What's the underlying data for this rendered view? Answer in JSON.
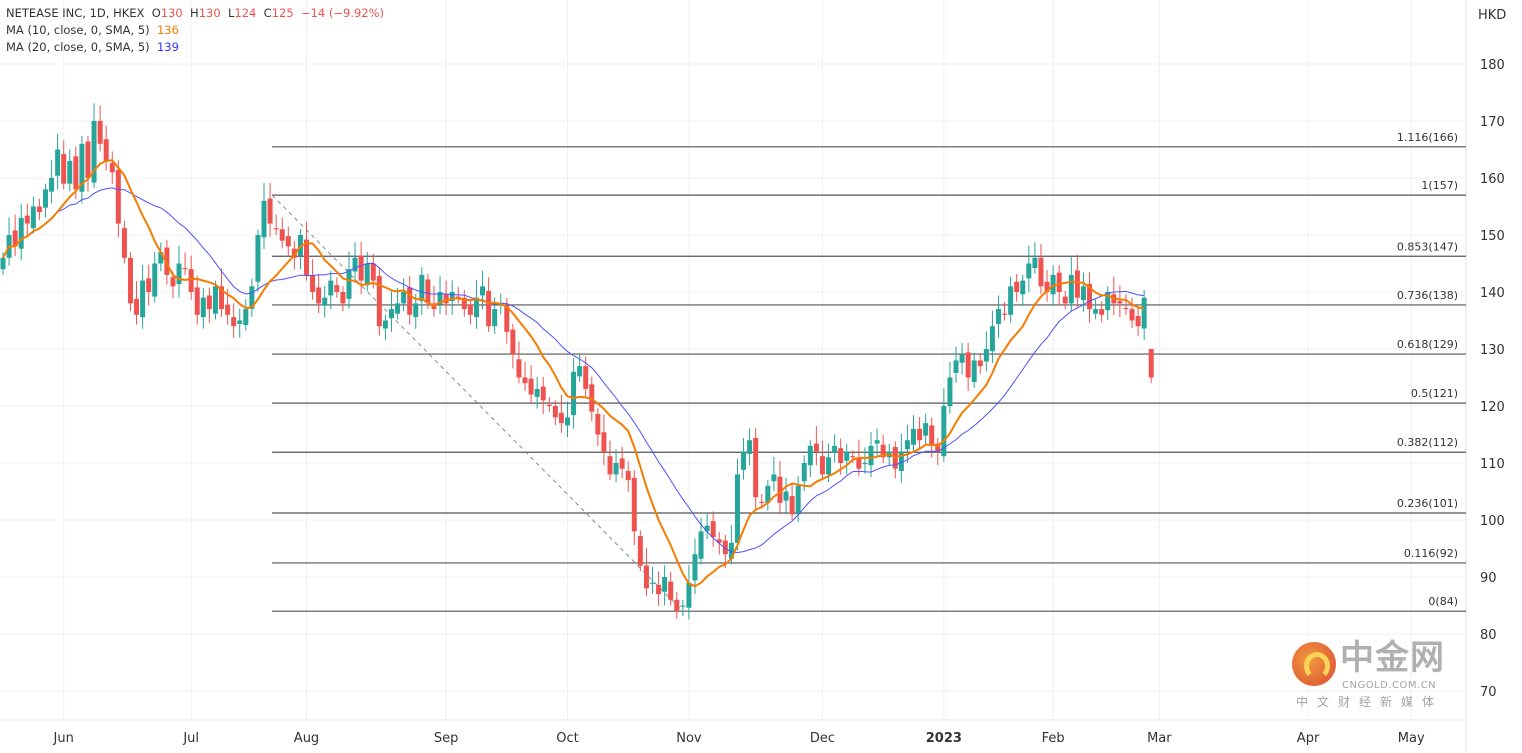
{
  "legend": {
    "symbol": "NETEASE INC, 1D, HKEX",
    "o_label": "O",
    "o": "130",
    "h_label": "H",
    "h": "130",
    "l_label": "L",
    "l": "124",
    "c_label": "C",
    "c": "125",
    "change": "−14 (−9.92%)",
    "ma10_label": "MA (10, close, 0, SMA, 5)",
    "ma10_value": "136",
    "ma20_label": "MA (20, close, 0, SMA, 5)",
    "ma20_value": "139"
  },
  "watermark": {
    "name": "中金网",
    "url": "CNGOLD.COM.CN",
    "tagline": "中文财经新媒体"
  },
  "colors": {
    "up": "#26a69a",
    "down": "#ef5350",
    "ma10": "#f57c00",
    "ma20": "#5050ff",
    "fib": "#555555",
    "grid": "#eef0f6"
  },
  "chart_data": {
    "type": "candlestick",
    "title": "NETEASE INC, 1D, HKEX",
    "currency": "HKD",
    "ylim": [
      70,
      185
    ],
    "y_ticks": [
      180,
      170,
      160,
      150,
      140,
      130,
      120,
      110,
      100,
      90,
      80,
      70
    ],
    "x_ticks": [
      {
        "label": "Jun",
        "index": 10
      },
      {
        "label": "Jul",
        "index": 31
      },
      {
        "label": "Aug",
        "index": 50
      },
      {
        "label": "Sep",
        "index": 73
      },
      {
        "label": "Oct",
        "index": 93
      },
      {
        "label": "Nov",
        "index": 113
      },
      {
        "label": "Dec",
        "index": 135
      },
      {
        "label": "2023",
        "index": 155,
        "bold": true
      },
      {
        "label": "Feb",
        "index": 173
      },
      {
        "label": "Mar",
        "index": 190.5
      },
      {
        "label": "Apr",
        "index": 215
      },
      {
        "label": "May",
        "index": 232
      }
    ],
    "closes": [
      146,
      150,
      148,
      153,
      152,
      155,
      154,
      158,
      160,
      165,
      159,
      163,
      158,
      166,
      160,
      170,
      166,
      163,
      161,
      152,
      146,
      138,
      136,
      142,
      140,
      145,
      147,
      143,
      141,
      145,
      144,
      140,
      136,
      139,
      137,
      141,
      137,
      136,
      134,
      135,
      137,
      141,
      150,
      156,
      152,
      151,
      149,
      148,
      146,
      150,
      143,
      140,
      138,
      139,
      142,
      140,
      138,
      144,
      146,
      142,
      145,
      142,
      134,
      135,
      137,
      138,
      140,
      136,
      138,
      143,
      138,
      137,
      140,
      138,
      140,
      139,
      137,
      136,
      139,
      141,
      134,
      137,
      138,
      133,
      129,
      125,
      124,
      122,
      123,
      121,
      120,
      118,
      117,
      118,
      126,
      127,
      123,
      119,
      115,
      112,
      108,
      110,
      109,
      107,
      98,
      92,
      88,
      89,
      87,
      90,
      86,
      84,
      85,
      89,
      94,
      98,
      99,
      97,
      96,
      94,
      96,
      108,
      112,
      114,
      104,
      103,
      106,
      108,
      103,
      105,
      101,
      106,
      110,
      113,
      112,
      108,
      111,
      113,
      110,
      112,
      111,
      109,
      110,
      113,
      114,
      111,
      112,
      109,
      112,
      114,
      116,
      114,
      117,
      113,
      112,
      120,
      125,
      128,
      129,
      125,
      128,
      127,
      130,
      134,
      137,
      136,
      141,
      140,
      142,
      145,
      146,
      141,
      140,
      143,
      140,
      138,
      143,
      139,
      141,
      137,
      137,
      136,
      140,
      138,
      138,
      137,
      135,
      134,
      139,
      125
    ],
    "last_candle": {
      "open": 130,
      "high": 130,
      "low": 124,
      "close": 125
    },
    "series": [
      {
        "name": "MA (10, close, 0, SMA, 5)",
        "type": "sma",
        "period": 10,
        "last": 136
      },
      {
        "name": "MA (20, close, 0, SMA, 5)",
        "type": "sma",
        "period": 20,
        "last": 139
      }
    ],
    "fibonacci": {
      "high": 157,
      "low": 84,
      "start_index": 44,
      "end_index": 112,
      "levels": [
        {
          "ratio": 1.116,
          "label": "1.116(166)"
        },
        {
          "ratio": 1,
          "label": "1(157)"
        },
        {
          "ratio": 0.853,
          "label": "0.853(147)"
        },
        {
          "ratio": 0.736,
          "label": "0.736(138)"
        },
        {
          "ratio": 0.618,
          "label": "0.618(129)"
        },
        {
          "ratio": 0.5,
          "label": "0.5(121)"
        },
        {
          "ratio": 0.382,
          "label": "0.382(112)"
        },
        {
          "ratio": 0.236,
          "label": "0.236(101)"
        },
        {
          "ratio": 0.116,
          "label": "0.116(92)"
        },
        {
          "ratio": 0,
          "label": "0(84)"
        }
      ]
    }
  }
}
